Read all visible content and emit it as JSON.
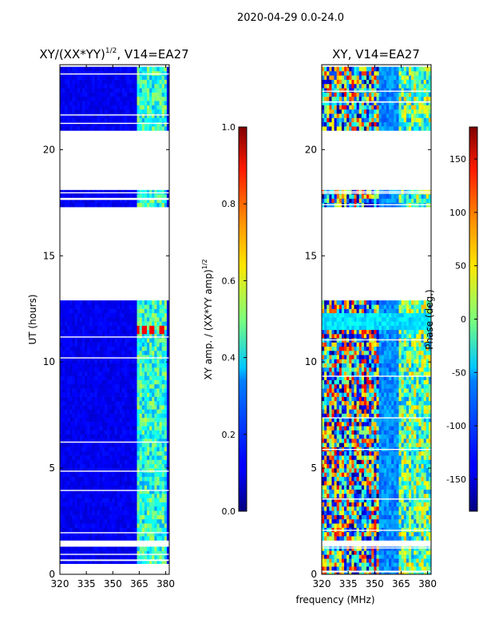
{
  "figure": {
    "suptitle": "2020-04-29 0.0-24.0",
    "xlabel": "frequency (MHz)"
  },
  "chart_data": [
    {
      "type": "heatmap",
      "title_prefix": "XY/(XX*YY)",
      "title_exp": "1/2",
      "title_suffix": ", V14=EA27",
      "ylabel": "UT (hours)",
      "xlim": [
        320,
        382
      ],
      "ylim": [
        0,
        24
      ],
      "xticks": [
        320,
        335,
        350,
        365,
        380
      ],
      "yticks": [
        0,
        5,
        10,
        15,
        20
      ],
      "colorbar": {
        "label_main": "XY amp. / (XX*YY amp)",
        "label_exp": "1/2",
        "range": [
          0.0,
          1.0
        ],
        "ticks": [
          0.0,
          0.2,
          0.4,
          0.6,
          0.8,
          1.0
        ],
        "tick_labels": [
          "0.0",
          "0.2",
          "0.4",
          "0.6",
          "0.8",
          "1.0"
        ]
      },
      "data_bands_ut": [
        [
          0.5,
          1.3
        ],
        [
          1.6,
          6.0
        ],
        [
          6.0,
          12.9
        ],
        [
          17.3,
          18.1
        ],
        [
          20.9,
          23.9
        ]
      ],
      "excited_freq_mhz": [
        363,
        380
      ],
      "hot_spots": [
        {
          "ut": [
            11.2,
            11.6
          ],
          "freq": [
            [
              363,
              366
            ],
            [
              367,
              370
            ],
            [
              371,
              374
            ],
            [
              376,
              379
            ]
          ],
          "value": 0.88
        }
      ]
    },
    {
      "type": "heatmap",
      "title": "XY, V14=EA27",
      "xlim": [
        320,
        382
      ],
      "ylim": [
        0,
        24
      ],
      "xticks": [
        320,
        335,
        350,
        365,
        380
      ],
      "yticks": [
        0,
        5,
        10,
        15,
        20
      ],
      "colorbar": {
        "label": "Phase (deg.)",
        "range": [
          -180,
          180
        ],
        "ticks": [
          -150,
          -100,
          -50,
          0,
          50,
          100,
          150
        ],
        "tick_labels": [
          "-150",
          "-100",
          "-50",
          "0",
          "50",
          "100",
          "150"
        ]
      },
      "data_bands_ut": [
        [
          0.0,
          1.3
        ],
        [
          1.6,
          6.0
        ],
        [
          6.0,
          12.9
        ],
        [
          17.3,
          18.1
        ],
        [
          20.9,
          23.9
        ]
      ]
    }
  ]
}
